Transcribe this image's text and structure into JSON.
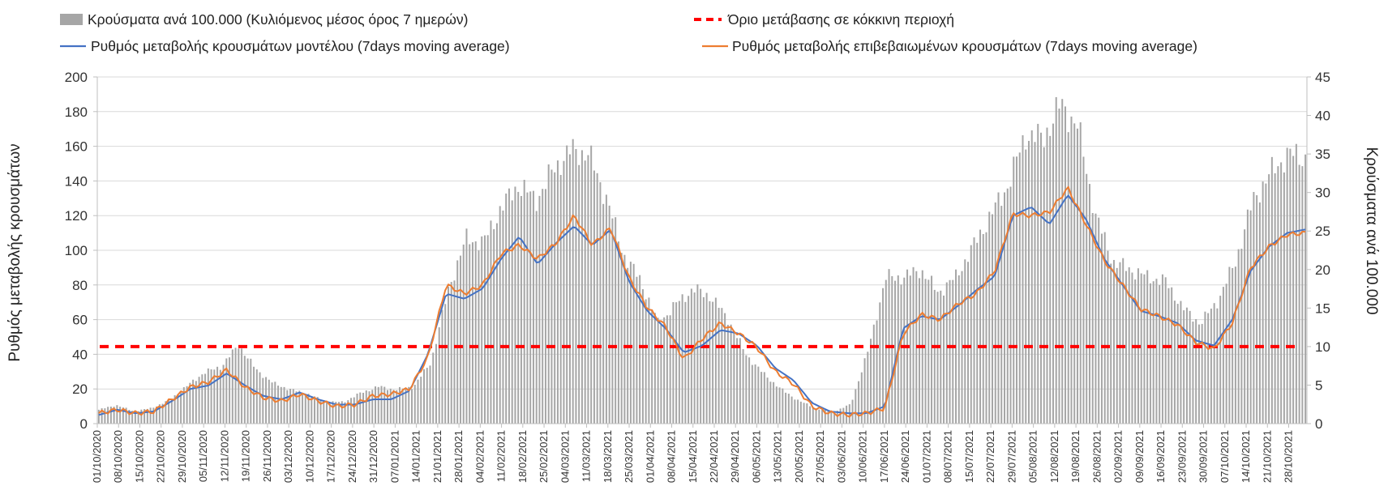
{
  "chart_data": {
    "type": "bar+line",
    "title": "",
    "colors": {
      "bars": "#a6a6a6",
      "model_line": "#4472c4",
      "confirmed_line": "#ed7d31",
      "threshold": "#ff0000"
    },
    "legend": {
      "placement": "top",
      "bars": "Κρούσματα ανά 100.000 (Κυλιόμενος μέσος όρος 7 ημερών)",
      "threshold": "Όριο μετάβασης σε κόκκινη περιοχή",
      "model_line": "Ρυθμός μεταβολής κρουσμάτων μοντέλου (7days moving average)",
      "confirmed_line": "Ρυθμός μεταβολής επιβεβαιωμένων κρουσμάτων (7days moving average)"
    },
    "ylabel_left": "Ρυθμός μεταβολής κρουσμάτων",
    "ylabel_right": "Κρούσματα ανά 100.000",
    "ylim_left": [
      0,
      200
    ],
    "ylim_right": [
      0,
      45
    ],
    "yticks_left": [
      "0",
      "20",
      "40",
      "60",
      "80",
      "100",
      "120",
      "140",
      "160",
      "180",
      "200"
    ],
    "yticks_right": [
      "0",
      "5",
      "10",
      "15",
      "20",
      "25",
      "30",
      "35",
      "40",
      "45"
    ],
    "x_start": "2020-10-01",
    "x_end": "2021-11-02",
    "x_ticks": [
      "01/10/2020",
      "08/10/2020",
      "15/10/2020",
      "22/10/2020",
      "29/10/2020",
      "05/11/2020",
      "12/11/2020",
      "19/11/2020",
      "26/11/2020",
      "03/12/2020",
      "10/12/2020",
      "17/12/2020",
      "24/12/2020",
      "31/12/2020",
      "07/01/2021",
      "14/01/2021",
      "21/01/2021",
      "28/01/2021",
      "04/02/2021",
      "11/02/2021",
      "18/02/2021",
      "25/02/2021",
      "04/03/2021",
      "11/03/2021",
      "18/03/2021",
      "25/03/2021",
      "01/04/2021",
      "08/04/2021",
      "15/04/2021",
      "22/04/2021",
      "29/04/2021",
      "06/05/2021",
      "13/05/2021",
      "20/05/2021",
      "27/05/2021",
      "03/06/2021",
      "10/06/2021",
      "17/06/2021",
      "24/06/2021",
      "01/07/2021",
      "08/07/2021",
      "15/07/2021",
      "22/07/2021",
      "29/07/2021",
      "05/08/2021",
      "12/08/2021",
      "19/08/2021",
      "26/08/2021",
      "02/09/2021",
      "09/09/2021",
      "16/09/2021",
      "23/09/2021",
      "30/09/2021",
      "07/10/2021",
      "14/10/2021",
      "21/10/2021",
      "28/10/2021"
    ],
    "threshold_value_right_axis": 10,
    "bars_cases_per_100k_weekly_anchors": [
      1.8,
      2.4,
      1.6,
      2.0,
      3.0,
      4.8,
      6.6,
      7.4,
      10.2,
      7.0,
      5.2,
      4.4,
      3.8,
      2.8,
      2.8,
      4.0,
      4.8,
      4.4,
      4.8,
      8.0,
      17.5,
      24.0,
      23.5,
      28.0,
      31.0,
      29.0,
      33.0,
      35.5,
      35.0,
      29.5,
      22.0,
      18.5,
      13.0,
      15.5,
      17.5,
      16.5,
      13.5,
      9.0,
      6.5,
      4.5,
      3.0,
      2.0,
      1.5,
      2.5,
      9.5,
      19.0,
      19.0,
      20.0,
      17.0,
      19.0,
      23.0,
      27.0,
      31.0,
      37.5,
      37.0,
      41.5,
      38.5,
      27.0,
      21.0,
      20.0,
      19.0,
      18.5,
      15.0,
      13.0,
      16.0,
      21.0,
      29.0,
      32.5,
      35.0,
      34.5
    ],
    "model_line_weekly_anchors": [
      5,
      8,
      6,
      7,
      13,
      20,
      22,
      29,
      22,
      16,
      14,
      18,
      14,
      11,
      11,
      14,
      14,
      19,
      40,
      75,
      72,
      78,
      95,
      108,
      92,
      104,
      114,
      103,
      112,
      82,
      65,
      55,
      41,
      45,
      54,
      52,
      45,
      32,
      25,
      12,
      7,
      6,
      6,
      10,
      55,
      62,
      60,
      68,
      77,
      85,
      120,
      125,
      115,
      132,
      118,
      95,
      80,
      65,
      62,
      58,
      48,
      45,
      60,
      88,
      102,
      110,
      112
    ],
    "confirmed_line_weekly_anchors": [
      6,
      8,
      6,
      7,
      14,
      21,
      24,
      31,
      21,
      15,
      13,
      17,
      13,
      10,
      11,
      16,
      17,
      20,
      38,
      80,
      75,
      80,
      98,
      103,
      95,
      104,
      120,
      103,
      113,
      84,
      67,
      56,
      37,
      49,
      58,
      52,
      44,
      30,
      23,
      10,
      6,
      5,
      6,
      9,
      52,
      63,
      60,
      69,
      75,
      88,
      121,
      120,
      122,
      136,
      115,
      94,
      80,
      66,
      62,
      57,
      47,
      43,
      58,
      90,
      102,
      109,
      110
    ]
  }
}
